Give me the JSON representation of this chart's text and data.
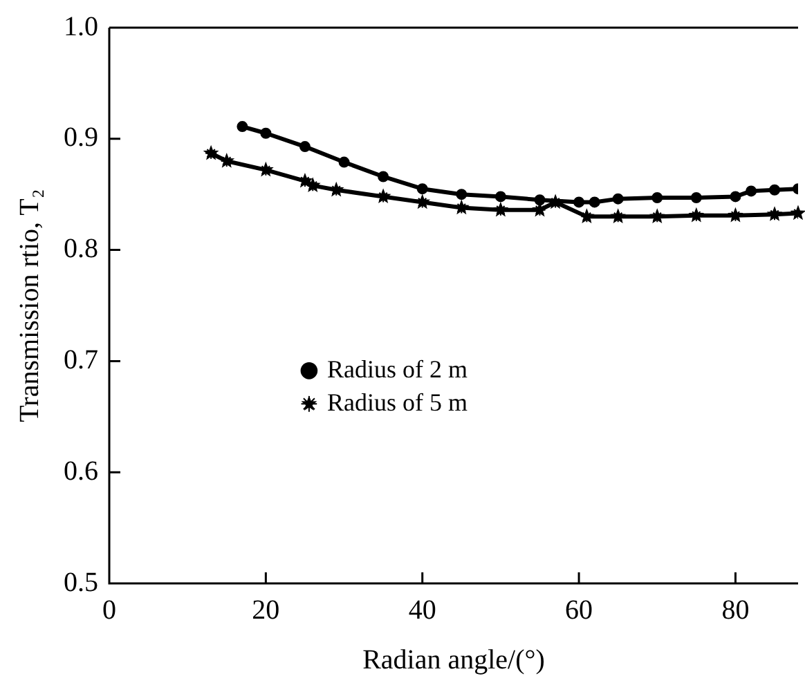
{
  "chart_data": {
    "type": "line",
    "xlabel": "Radian angle/(°)",
    "ylabel": "Transmission rtio, T₂",
    "xlim": [
      0,
      88
    ],
    "xticks": [
      0,
      20,
      40,
      60,
      80
    ],
    "ylim": [
      0.5,
      1.0
    ],
    "yticks": [
      0.5,
      0.6,
      0.7,
      0.8,
      0.9,
      {
        "value": 1.0,
        "label": "1.0"
      }
    ],
    "grid": false,
    "legend": "left",
    "line_style": "solid",
    "series": [
      {
        "name": "Radius of 2 m",
        "color": "#000000",
        "marker": "circle",
        "x": [
          17,
          20,
          25,
          30,
          35,
          40,
          45,
          50,
          55,
          60,
          62,
          65,
          70,
          75,
          80,
          82,
          85,
          88
        ],
        "values": [
          0.911,
          0.905,
          0.893,
          0.879,
          0.866,
          0.855,
          0.85,
          0.848,
          0.845,
          0.843,
          0.843,
          0.846,
          0.847,
          0.847,
          0.848,
          0.853,
          0.854,
          0.855
        ]
      },
      {
        "name": "Radius of 5 m",
        "color": "#000000",
        "marker": "star",
        "x": [
          13,
          15,
          20,
          25,
          26,
          29,
          35,
          40,
          45,
          50,
          55,
          57,
          61,
          65,
          70,
          75,
          80,
          85,
          88
        ],
        "values": [
          0.887,
          0.88,
          0.872,
          0.862,
          0.858,
          0.854,
          0.848,
          0.843,
          0.838,
          0.836,
          0.836,
          0.843,
          0.83,
          0.83,
          0.83,
          0.831,
          0.831,
          0.832,
          0.833
        ]
      }
    ]
  }
}
